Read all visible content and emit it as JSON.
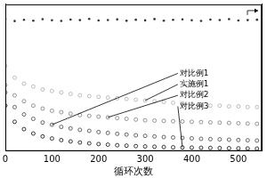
{
  "chart_data": {
    "type": "scatter",
    "x_label": "循环次数",
    "x": [
      0,
      20,
      40,
      60,
      80,
      100,
      120,
      140,
      160,
      180,
      200,
      220,
      240,
      260,
      280,
      300,
      320,
      340,
      360,
      380,
      400,
      420,
      440,
      460,
      480,
      500,
      520,
      540
    ],
    "series": [
      {
        "name": "对比例1",
        "color": "#555555",
        "marker": "open_circle",
        "values": [
          40,
          30,
          25,
          22,
          19.5,
          18,
          16.5,
          15.5,
          14.5,
          13.8,
          13,
          12.4,
          11.8,
          11.3,
          10.8,
          10.4,
          10,
          9.6,
          9.3,
          9,
          8.7,
          8.4,
          8.2,
          8,
          7.8,
          7.6,
          7.4,
          7.2
        ]
      },
      {
        "name": "实施例1",
        "color": "#b5b5b5",
        "marker": "open_circle",
        "values": [
          58,
          50,
          46,
          44,
          42,
          41,
          40,
          39,
          38,
          37.5,
          37,
          36.5,
          36,
          35.5,
          35,
          34.5,
          34,
          33.5,
          33,
          32.5,
          32,
          31.5,
          31,
          31,
          30.5,
          30.5,
          30,
          30
        ]
      },
      {
        "name": "对比例2",
        "color": "#888888",
        "marker": "open_circle",
        "values": [
          45,
          38,
          34,
          31,
          29,
          27.5,
          26.5,
          25.5,
          24.5,
          24,
          23.5,
          23,
          22.5,
          22,
          21.5,
          21,
          20.8,
          20.6,
          20.4,
          20.2,
          20,
          19.8,
          19.6,
          19.4,
          19.2,
          19,
          18.8,
          18.6
        ]
      },
      {
        "name": "对比例3",
        "color": "#222222",
        "marker": "open_circle",
        "values": [
          31,
          20,
          15,
          12,
          10,
          8.6,
          7.5,
          6.6,
          5.9,
          5.3,
          4.8,
          4.4,
          4,
          3.7,
          3.4,
          3.2,
          3,
          2.8,
          2.6,
          2.5,
          2.4,
          2.3,
          2.2,
          2.1,
          2,
          1.9,
          1.8,
          1.7
        ]
      },
      {
        "color": "#333333",
        "marker": "circle",
        "axis": "y2",
        "values": [
          99,
          97.5,
          98.4,
          97.8,
          98.9,
          98.1,
          97.6,
          98.6,
          98.2,
          99.1,
          97.9,
          98.3,
          98.7,
          97.7,
          98.5,
          98.0,
          99.0,
          97.8,
          98.4,
          98.8,
          98.1,
          97.6,
          98.6,
          98.3,
          98.9,
          97.9,
          98.2,
          98.5
        ]
      }
    ],
    "xlim": [
      0,
      550
    ],
    "xticks": [
      0,
      100,
      200,
      300,
      400,
      500
    ],
    "ylim": [
      0,
      100
    ],
    "y2lim": [
      0,
      110
    ],
    "tick_labels": "x",
    "grid": false
  }
}
